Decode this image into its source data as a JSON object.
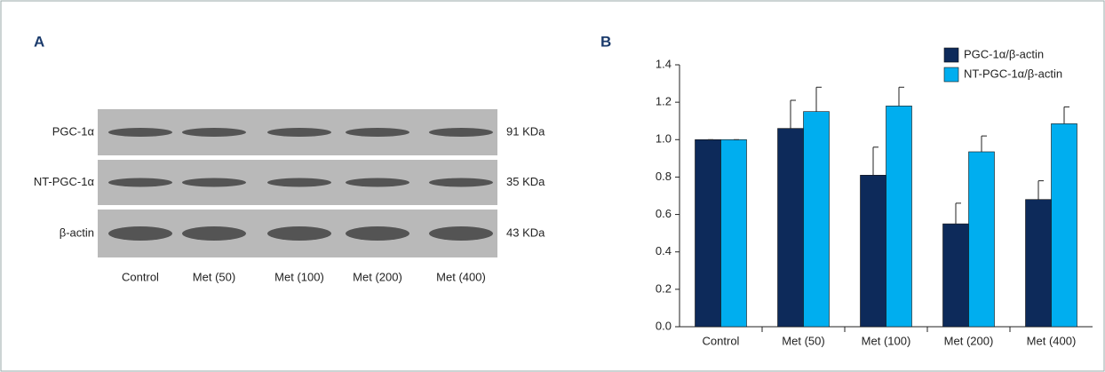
{
  "panel_a": {
    "label": "A",
    "rows": [
      {
        "label": "PGC-1α",
        "size": "91 KDa"
      },
      {
        "label": "NT-PGC-1α",
        "size": "35 KDa"
      },
      {
        "label": "β-actin",
        "size": "43 KDa"
      }
    ],
    "lanes": [
      "Control",
      "Met (50)",
      "Met (100)",
      "Met (200)",
      "Met (400)"
    ]
  },
  "chart_data": {
    "type": "bar",
    "panel_label": "B",
    "categories": [
      "Control",
      "Met (50)",
      "Met (100)",
      "Met (200)",
      "Met (400)"
    ],
    "series": [
      {
        "name": "PGC-1α/β-actin",
        "color": "#0d2a5a",
        "values": [
          1.0,
          1.06,
          0.81,
          0.55,
          0.68
        ],
        "errors": [
          0,
          0.15,
          0.15,
          0.11,
          0.1
        ]
      },
      {
        "name": "NT-PGC-1α/β-actin",
        "color": "#00aeef",
        "values": [
          1.0,
          1.15,
          1.18,
          0.935,
          1.085
        ],
        "errors": [
          0,
          0.13,
          0.1,
          0.085,
          0.09
        ]
      }
    ],
    "ylim": [
      0,
      1.4
    ],
    "yticks": [
      {
        "value": 0,
        "label": "0.0"
      },
      0.2,
      0.4,
      0.6,
      0.8,
      {
        "value": 1,
        "label": "1.0"
      },
      1.2,
      1.4
    ],
    "legend": "top-right"
  }
}
